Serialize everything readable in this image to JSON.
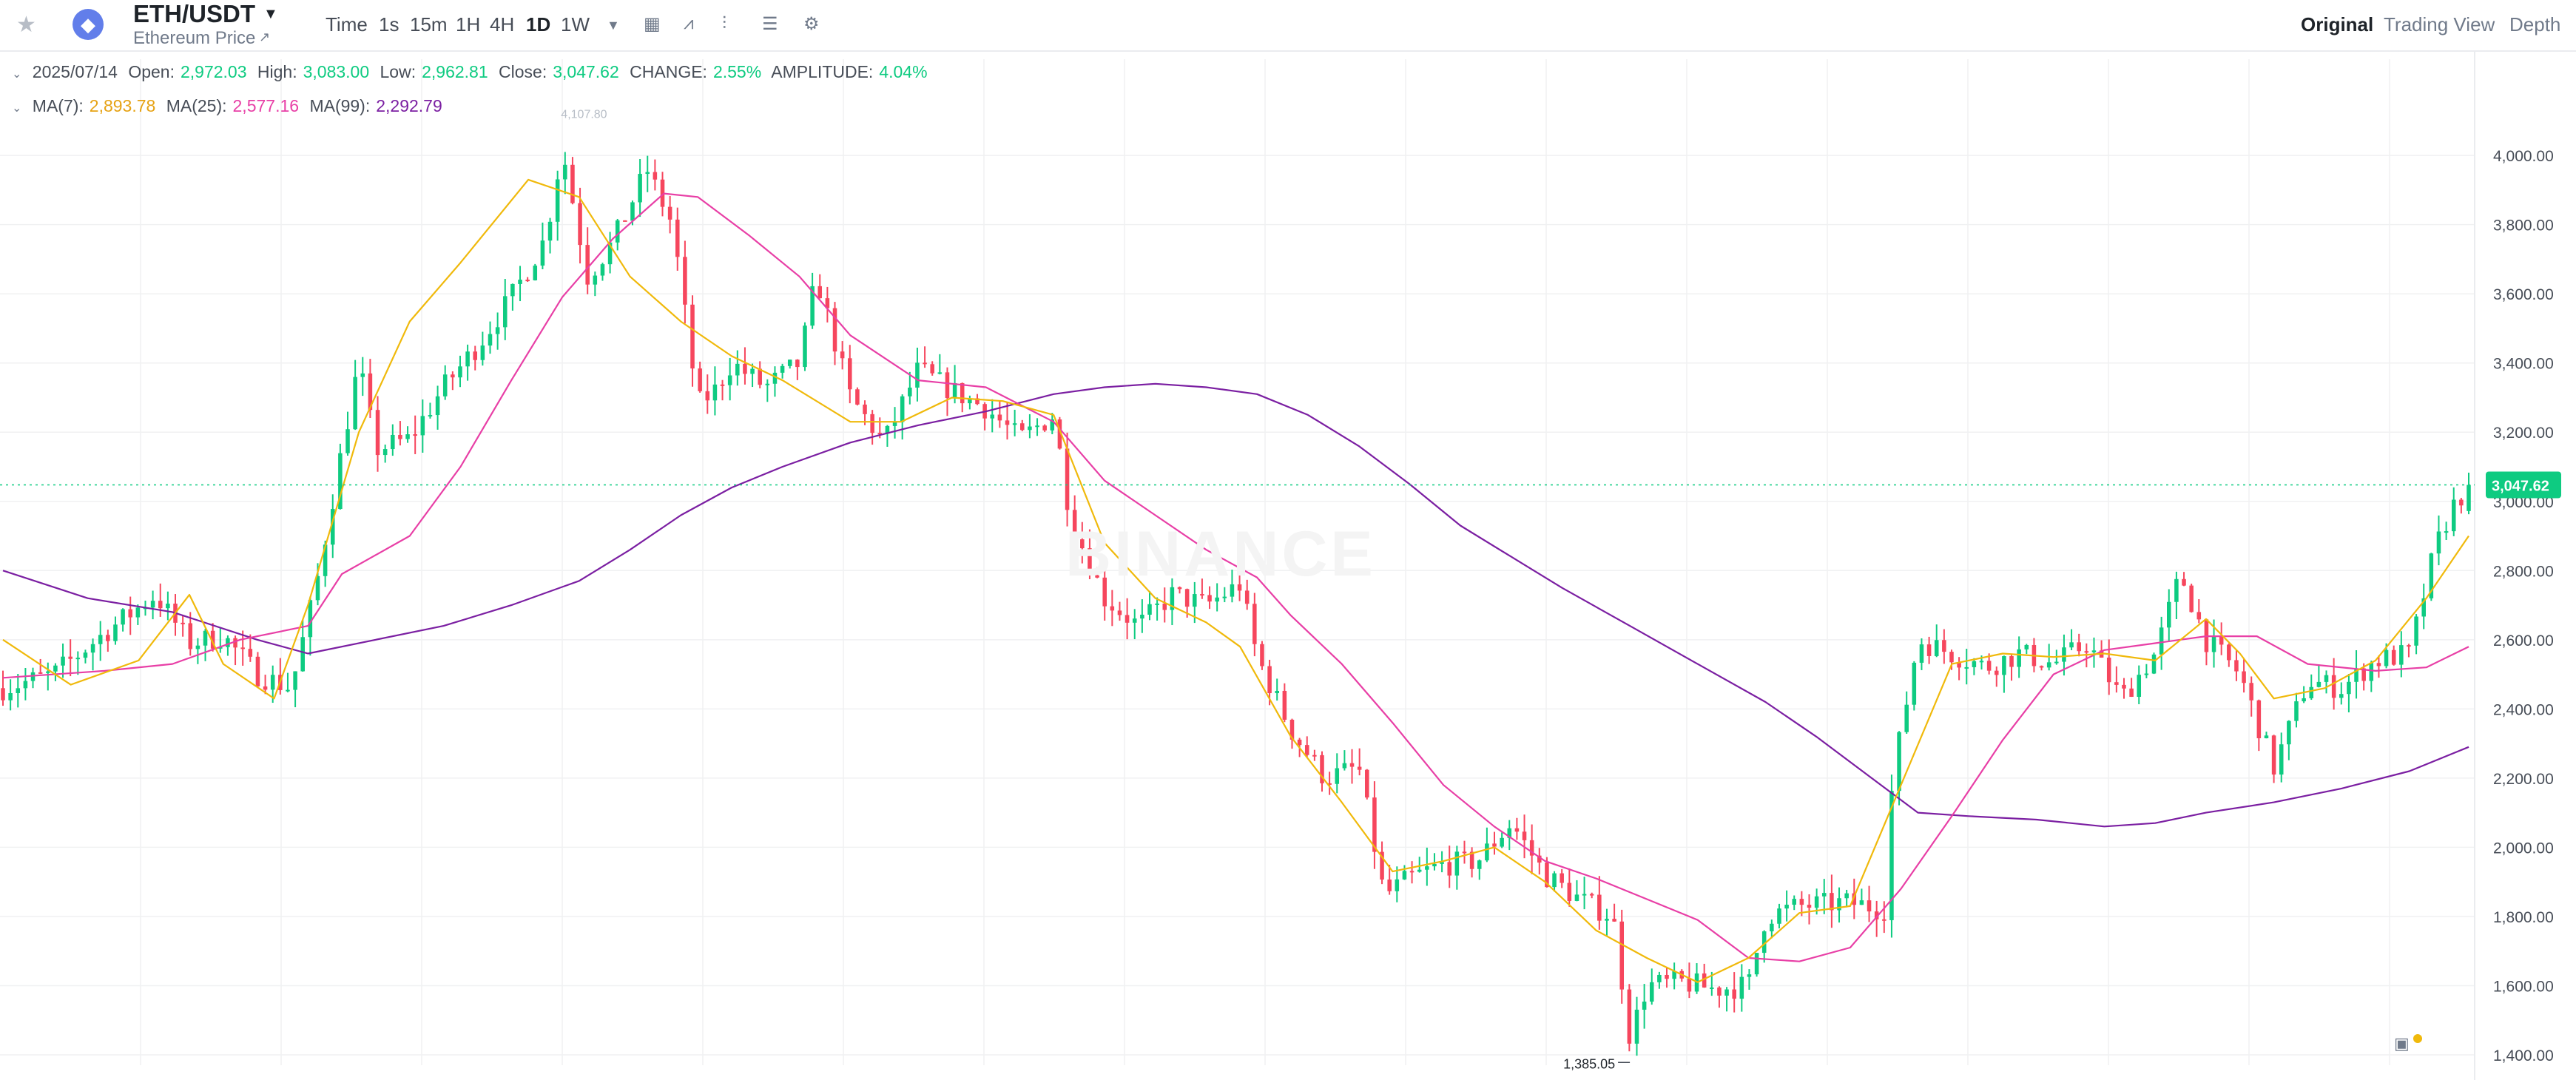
{
  "header": {
    "pair": "ETH/USDT",
    "subtitle": "Ethereum Price",
    "timeframes": [
      "Time",
      "1s",
      "15m",
      "1H",
      "4H",
      "1D",
      "1W"
    ],
    "active_timeframe": "1D",
    "views": [
      "Original",
      "Trading View",
      "Depth"
    ],
    "active_view": "Original"
  },
  "ohlc": {
    "date": "2025/07/14",
    "open_label": "Open:",
    "open": "2,972.03",
    "high_label": "High:",
    "high": "3,083.00",
    "low_label": "Low:",
    "low": "2,962.81",
    "close_label": "Close:",
    "close": "3,047.62",
    "change_label": "CHANGE:",
    "change": "2.55%",
    "amplitude_label": "AMPLITUDE:",
    "amplitude": "4.04%"
  },
  "ma_legend": {
    "ma7_label": "MA(7):",
    "ma7": "2,893.78",
    "ma25_label": "MA(25):",
    "ma25": "2,577.16",
    "ma99_label": "MA(99):",
    "ma99": "2,292.79"
  },
  "watermark": "BINANCE",
  "colors": {
    "up": "#0ecb81",
    "down": "#f6465d",
    "ma7": "#f0b90b",
    "ma25": "#e83fa6",
    "ma99": "#7b1fa2",
    "grid": "#f0f1f2",
    "axis_text": "#474d57"
  },
  "icons": [
    "star-icon",
    "ethereum-icon",
    "chevron-down-icon",
    "calendar-icon",
    "indicator-icon",
    "candle-type-icon",
    "layout-icon",
    "settings-icon"
  ],
  "chart_data": {
    "type": "candlestick",
    "symbol": "ETH/USDT",
    "interval": "1D",
    "last_price": 3047.62,
    "last_price_label": "3,047.62",
    "high_marker_label": "4,107.80",
    "low_marker_label": "1,385.05",
    "ylim": [
      1370,
      4150
    ],
    "yticks": [
      1400,
      1600,
      1800,
      2000,
      2200,
      2400,
      2600,
      2800,
      3000,
      3200,
      3400,
      3600,
      3800,
      4000
    ],
    "ytick_labels": [
      "1,400.00",
      "1,600.00",
      "1,800.00",
      "2,000.00",
      "2,200.00",
      "2,400.00",
      "2,600.00",
      "2,800.00",
      "3,000.00",
      "3,200.00",
      "3,400.00",
      "3,600.00",
      "3,800.00",
      "4,000.00"
    ],
    "ma_anchors": {
      "ma7": [
        [
          0,
          2600
        ],
        [
          40,
          2470
        ],
        [
          80,
          2540
        ],
        [
          110,
          2730
        ],
        [
          130,
          2530
        ],
        [
          160,
          2430
        ],
        [
          180,
          2700
        ],
        [
          210,
          3200
        ],
        [
          240,
          3520
        ],
        [
          270,
          3690
        ],
        [
          310,
          3930
        ],
        [
          340,
          3880
        ],
        [
          370,
          3650
        ],
        [
          400,
          3520
        ],
        [
          430,
          3420
        ],
        [
          460,
          3350
        ],
        [
          500,
          3230
        ],
        [
          530,
          3230
        ],
        [
          560,
          3300
        ],
        [
          590,
          3290
        ],
        [
          620,
          3250
        ],
        [
          650,
          2880
        ],
        [
          680,
          2720
        ],
        [
          710,
          2650
        ],
        [
          730,
          2580
        ],
        [
          760,
          2320
        ],
        [
          790,
          2130
        ],
        [
          820,
          1930
        ],
        [
          850,
          1960
        ],
        [
          880,
          2000
        ],
        [
          910,
          1900
        ],
        [
          940,
          1760
        ],
        [
          970,
          1680
        ],
        [
          1000,
          1610
        ],
        [
          1030,
          1680
        ],
        [
          1060,
          1810
        ],
        [
          1090,
          1830
        ],
        [
          1120,
          2180
        ],
        [
          1150,
          2530
        ],
        [
          1180,
          2560
        ],
        [
          1210,
          2550
        ],
        [
          1240,
          2560
        ],
        [
          1270,
          2540
        ],
        [
          1300,
          2660
        ],
        [
          1320,
          2560
        ],
        [
          1340,
          2430
        ],
        [
          1370,
          2460
        ],
        [
          1400,
          2540
        ],
        [
          1430,
          2720
        ],
        [
          1455,
          2900
        ]
      ],
      "ma25": [
        [
          0,
          2490
        ],
        [
          60,
          2510
        ],
        [
          100,
          2530
        ],
        [
          140,
          2600
        ],
        [
          180,
          2640
        ],
        [
          200,
          2790
        ],
        [
          240,
          2900
        ],
        [
          270,
          3100
        ],
        [
          300,
          3350
        ],
        [
          330,
          3590
        ],
        [
          360,
          3760
        ],
        [
          390,
          3890
        ],
        [
          410,
          3880
        ],
        [
          440,
          3770
        ],
        [
          470,
          3650
        ],
        [
          500,
          3480
        ],
        [
          540,
          3350
        ],
        [
          580,
          3330
        ],
        [
          620,
          3230
        ],
        [
          650,
          3060
        ],
        [
          680,
          2960
        ],
        [
          710,
          2860
        ],
        [
          740,
          2780
        ],
        [
          760,
          2670
        ],
        [
          790,
          2530
        ],
        [
          820,
          2360
        ],
        [
          850,
          2180
        ],
        [
          880,
          2060
        ],
        [
          910,
          1960
        ],
        [
          940,
          1910
        ],
        [
          970,
          1850
        ],
        [
          1000,
          1790
        ],
        [
          1030,
          1680
        ],
        [
          1060,
          1670
        ],
        [
          1090,
          1710
        ],
        [
          1120,
          1880
        ],
        [
          1150,
          2090
        ],
        [
          1180,
          2310
        ],
        [
          1210,
          2500
        ],
        [
          1240,
          2570
        ],
        [
          1270,
          2590
        ],
        [
          1300,
          2610
        ],
        [
          1330,
          2610
        ],
        [
          1360,
          2530
        ],
        [
          1400,
          2510
        ],
        [
          1430,
          2520
        ],
        [
          1455,
          2580
        ]
      ],
      "ma99": [
        [
          0,
          2800
        ],
        [
          50,
          2720
        ],
        [
          100,
          2680
        ],
        [
          150,
          2600
        ],
        [
          180,
          2560
        ],
        [
          220,
          2600
        ],
        [
          260,
          2640
        ],
        [
          300,
          2700
        ],
        [
          340,
          2770
        ],
        [
          370,
          2860
        ],
        [
          400,
          2960
        ],
        [
          430,
          3040
        ],
        [
          460,
          3100
        ],
        [
          500,
          3170
        ],
        [
          540,
          3220
        ],
        [
          580,
          3260
        ],
        [
          620,
          3310
        ],
        [
          650,
          3330
        ],
        [
          680,
          3340
        ],
        [
          710,
          3330
        ],
        [
          740,
          3310
        ],
        [
          770,
          3250
        ],
        [
          800,
          3160
        ],
        [
          830,
          3050
        ],
        [
          860,
          2930
        ],
        [
          890,
          2840
        ],
        [
          920,
          2750
        ],
        [
          960,
          2640
        ],
        [
          1000,
          2530
        ],
        [
          1040,
          2420
        ],
        [
          1070,
          2320
        ],
        [
          1100,
          2210
        ],
        [
          1130,
          2100
        ],
        [
          1160,
          2090
        ],
        [
          1200,
          2080
        ],
        [
          1240,
          2060
        ],
        [
          1270,
          2070
        ],
        [
          1300,
          2100
        ],
        [
          1340,
          2130
        ],
        [
          1380,
          2170
        ],
        [
          1420,
          2220
        ],
        [
          1455,
          2290
        ]
      ]
    },
    "candles_anchors": [
      [
        0,
        2460
      ],
      [
        30,
        2500
      ],
      [
        60,
        2620
      ],
      [
        90,
        2730
      ],
      [
        110,
        2590
      ],
      [
        130,
        2610
      ],
      [
        150,
        2500
      ],
      [
        170,
        2460
      ],
      [
        185,
        2760
      ],
      [
        200,
        3150
      ],
      [
        210,
        3400
      ],
      [
        220,
        3150
      ],
      [
        240,
        3180
      ],
      [
        260,
        3330
      ],
      [
        280,
        3450
      ],
      [
        300,
        3590
      ],
      [
        320,
        3760
      ],
      [
        330,
        4020
      ],
      [
        345,
        3650
      ],
      [
        360,
        3750
      ],
      [
        380,
        3960
      ],
      [
        395,
        3800
      ],
      [
        410,
        3280
      ],
      [
        420,
        3320
      ],
      [
        430,
        3400
      ],
      [
        450,
        3330
      ],
      [
        470,
        3400
      ],
      [
        480,
        3650
      ],
      [
        500,
        3300
      ],
      [
        520,
        3170
      ],
      [
        540,
        3380
      ],
      [
        560,
        3320
      ],
      [
        580,
        3270
      ],
      [
        600,
        3180
      ],
      [
        620,
        3250
      ],
      [
        630,
        2950
      ],
      [
        650,
        2720
      ],
      [
        670,
        2640
      ],
      [
        690,
        2730
      ],
      [
        710,
        2700
      ],
      [
        730,
        2760
      ],
      [
        740,
        2550
      ],
      [
        760,
        2340
      ],
      [
        780,
        2200
      ],
      [
        800,
        2230
      ],
      [
        815,
        1860
      ],
      [
        830,
        1910
      ],
      [
        850,
        1950
      ],
      [
        870,
        1960
      ],
      [
        890,
        2070
      ],
      [
        910,
        1920
      ],
      [
        930,
        1850
      ],
      [
        950,
        1800
      ],
      [
        960,
        1450
      ],
      [
        970,
        1600
      ],
      [
        990,
        1610
      ],
      [
        1010,
        1590
      ],
      [
        1030,
        1600
      ],
      [
        1040,
        1800
      ],
      [
        1060,
        1830
      ],
      [
        1090,
        1840
      ],
      [
        1110,
        1820
      ],
      [
        1115,
        2200
      ],
      [
        1130,
        2600
      ],
      [
        1150,
        2560
      ],
      [
        1170,
        2520
      ],
      [
        1190,
        2560
      ],
      [
        1210,
        2530
      ],
      [
        1230,
        2590
      ],
      [
        1250,
        2430
      ],
      [
        1270,
        2560
      ],
      [
        1285,
        2790
      ],
      [
        1300,
        2600
      ],
      [
        1320,
        2500
      ],
      [
        1340,
        2230
      ],
      [
        1360,
        2480
      ],
      [
        1380,
        2460
      ],
      [
        1400,
        2540
      ],
      [
        1420,
        2560
      ],
      [
        1435,
        2860
      ],
      [
        1445,
        2980
      ],
      [
        1455,
        3047
      ]
    ],
    "candles": []
  }
}
